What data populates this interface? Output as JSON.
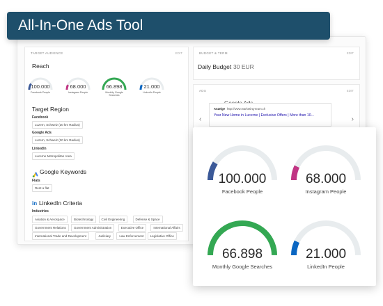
{
  "banner": {
    "title": "All-In-One Ads Tool"
  },
  "audience": {
    "section_title": "TARGET AUDIENCE",
    "edit": "EDIT",
    "reach_heading": "Reach",
    "mini_gauges": [
      {
        "value": "100.000",
        "label": "Facebook People",
        "color": "#3b5998",
        "fraction": 0.18
      },
      {
        "value": "68.000",
        "label": "Instagram People",
        "color": "#c13584",
        "fraction": 0.14
      },
      {
        "value": "66.898",
        "label": "Monthly Google Searches",
        "color": "#34a853",
        "fraction": 1.0
      },
      {
        "value": "21.000",
        "label": "LinkedIn People",
        "color": "#0a66c2",
        "fraction": 0.14
      }
    ],
    "region_heading": "Target Region",
    "facebook_label": "Facebook",
    "facebook_region": "Luzern, Schweiz (30 km Radius)",
    "google_label": "Google Ads",
    "google_region": "Luzern, Schweiz (30 km Radius)",
    "linkedin_label": "LinkedIn",
    "linkedin_region": "Lucerne Metropolitan Area",
    "keywords_heading": "Google Keywords",
    "flats_label": "Flats",
    "flats_chip": "Rent a flat",
    "criteria_heading": "LinkedIn Criteria",
    "industries_label": "Industries",
    "industries": [
      "Aviation & Aerospace",
      "Biotechnology",
      "Civil Engineering",
      "Defense & Space",
      "Government Relations",
      "Government Administration",
      "Executive Office",
      "International Affairs",
      "International Trade and Development",
      "Judiciary",
      "Law Enforcement",
      "Legislative Office"
    ]
  },
  "budget": {
    "section_title": "BUDGET & TERM",
    "edit": "EDIT",
    "daily_label": "Daily Budget",
    "daily_value": "30 EUR"
  },
  "ads": {
    "section_title": "ADS",
    "edit": "EDIT",
    "google_ads_label": "Google Ads",
    "search_network": "Search network",
    "ad_badge": "Anzeige",
    "ad_url": "http://www.marketing-team.ch",
    "ad_headline": "Your New Home in Lucerne | Exclusive Offers | More than 10...",
    "prev_arrow": "‹",
    "next_arrow": "›"
  },
  "zoom": {
    "gauges": [
      {
        "value": "100.000",
        "label": "Facebook People",
        "color": "#3b5998",
        "fraction": 0.18
      },
      {
        "value": "68.000",
        "label": "Instagram People",
        "color": "#c13584",
        "fraction": 0.14
      },
      {
        "value": "66.898",
        "label": "Monthly Google Searches",
        "color": "#34a853",
        "fraction": 1.0
      },
      {
        "value": "21.000",
        "label": "LinkedIn People",
        "color": "#0a66c2",
        "fraction": 0.14
      }
    ]
  },
  "colors": {
    "banner": "#1e4f6b",
    "track": "#e8ecee",
    "link": "#1a0dab"
  }
}
